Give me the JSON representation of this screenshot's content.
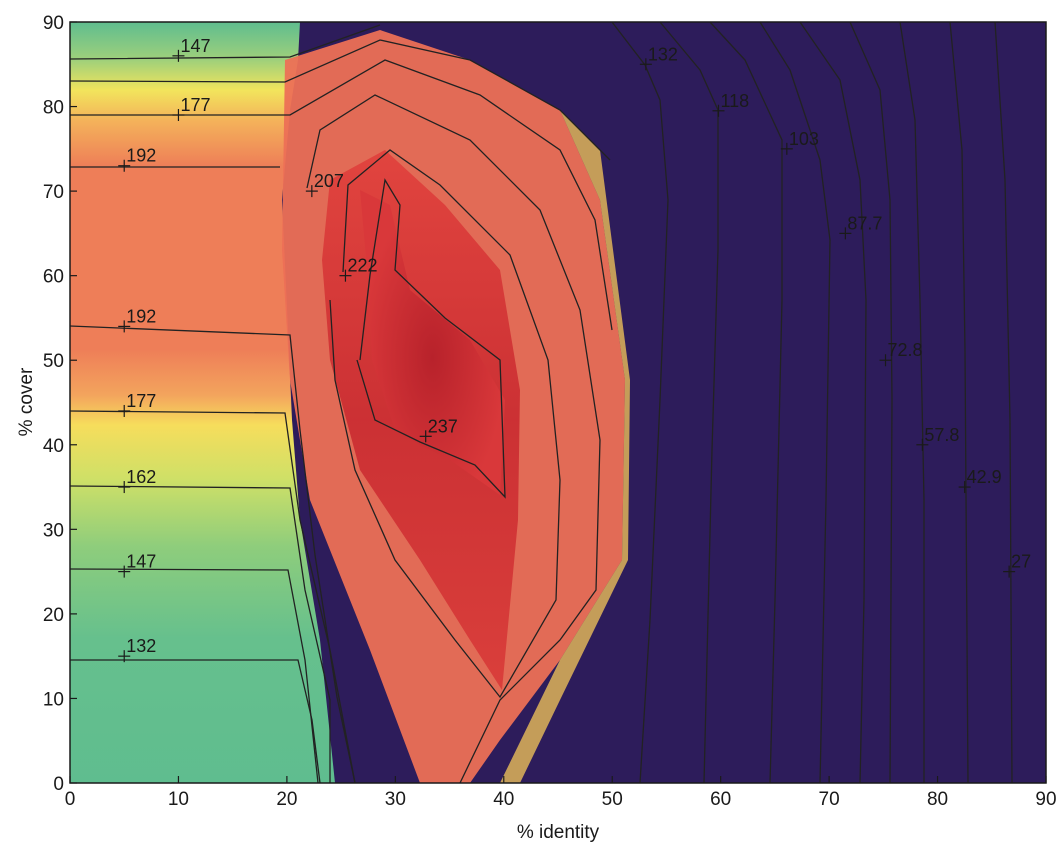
{
  "chart_data": {
    "type": "contour",
    "title": "",
    "xlabel": "% identity",
    "ylabel": "% cover",
    "xlim": [
      0,
      90
    ],
    "ylim": [
      0,
      90
    ],
    "xticks": [
      "0",
      "10",
      "20",
      "30",
      "40",
      "50",
      "60",
      "70",
      "80",
      "90"
    ],
    "yticks": [
      "0",
      "10",
      "20",
      "30",
      "40",
      "50",
      "60",
      "70",
      "80",
      "90"
    ],
    "colormap": [
      "#f8cf52",
      "#f5e658",
      "#9fcf7d",
      "#60bd90",
      "#75c6c8",
      "#4f7db0",
      "#47397a",
      "#2f1d5e"
    ],
    "contour_levels": [
      "27",
      "42.9",
      "57.8",
      "72.8",
      "87.7",
      "103",
      "118",
      "132",
      "147",
      "162",
      "177",
      "192",
      "207",
      "222",
      "237"
    ],
    "contour_labels": [
      {
        "text": "147",
        "x": 10,
        "y": 86
      },
      {
        "text": "177",
        "x": 10,
        "y": 79
      },
      {
        "text": "192",
        "x": 5,
        "y": 73
      },
      {
        "text": "207",
        "x": 22.3,
        "y": 70
      },
      {
        "text": "222",
        "x": 25.4,
        "y": 60
      },
      {
        "text": "192",
        "x": 5,
        "y": 54
      },
      {
        "text": "177",
        "x": 5,
        "y": 44
      },
      {
        "text": "237",
        "x": 32.8,
        "y": 41
      },
      {
        "text": "162",
        "x": 5,
        "y": 35
      },
      {
        "text": "147",
        "x": 5,
        "y": 25
      },
      {
        "text": "132",
        "x": 5,
        "y": 15
      },
      {
        "text": "132",
        "x": 53.1,
        "y": 85
      },
      {
        "text": "118",
        "x": 59.8,
        "y": 79.5
      },
      {
        "text": "103",
        "x": 66.1,
        "y": 75
      },
      {
        "text": "87.7",
        "x": 71.5,
        "y": 65
      },
      {
        "text": "72.8",
        "x": 75.2,
        "y": 50
      },
      {
        "text": "57.8",
        "x": 78.6,
        "y": 40
      },
      {
        "text": "42.9",
        "x": 82.5,
        "y": 35
      },
      {
        "text": "27",
        "x": 86.6,
        "y": 25
      }
    ]
  }
}
